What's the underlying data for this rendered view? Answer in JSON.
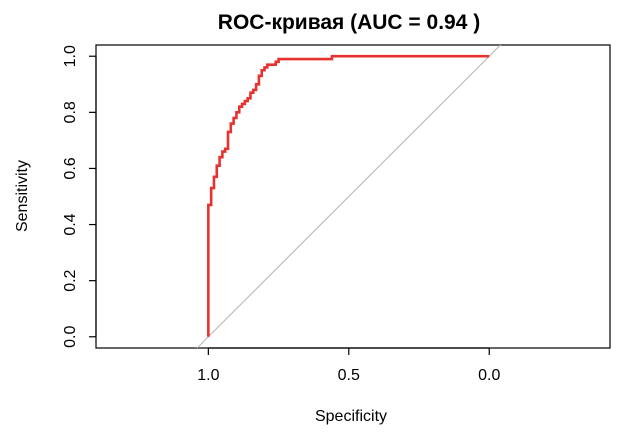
{
  "chart_data": {
    "type": "line",
    "title": "ROC-кривая (AUC = 0.94 )",
    "xlabel": "Specificity",
    "ylabel": "Sensitivity",
    "x_reversed": true,
    "xlim": [
      1.4,
      -0.43
    ],
    "ylim": [
      -0.04,
      1.04
    ],
    "grid": false,
    "legend": "none",
    "x_ticks": [
      {
        "value": 1.0,
        "label": "1.0"
      },
      {
        "value": 0.5,
        "label": "0.5"
      },
      {
        "value": 0.0,
        "label": "0.0"
      }
    ],
    "y_ticks": [
      {
        "value": 0.0,
        "label": "0.0"
      },
      {
        "value": 0.2,
        "label": "0.2"
      },
      {
        "value": 0.4,
        "label": "0.4"
      },
      {
        "value": 0.6,
        "label": "0.6"
      },
      {
        "value": 0.8,
        "label": "0.8"
      },
      {
        "value": 1.0,
        "label": "1.0"
      }
    ],
    "series": [
      {
        "color": "#e8322f",
        "x": [
          1.0,
          1.0,
          1.0,
          0.99,
          0.99,
          0.98,
          0.98,
          0.97,
          0.97,
          0.96,
          0.96,
          0.95,
          0.95,
          0.94,
          0.94,
          0.93,
          0.93,
          0.92,
          0.92,
          0.91,
          0.91,
          0.9,
          0.9,
          0.89,
          0.89,
          0.88,
          0.88,
          0.87,
          0.87,
          0.86,
          0.86,
          0.85,
          0.85,
          0.84,
          0.84,
          0.83,
          0.83,
          0.82,
          0.82,
          0.81,
          0.81,
          0.8,
          0.8,
          0.79,
          0.79,
          0.78,
          0.78,
          0.77,
          0.77,
          0.76,
          0.76,
          0.75,
          0.75,
          0.74,
          0.74,
          0.56,
          0.56,
          0.0
        ],
        "y": [
          0.0,
          0.47,
          0.47,
          0.47,
          0.53,
          0.53,
          0.57,
          0.57,
          0.61,
          0.61,
          0.64,
          0.64,
          0.66,
          0.66,
          0.67,
          0.67,
          0.73,
          0.73,
          0.76,
          0.76,
          0.78,
          0.78,
          0.8,
          0.8,
          0.82,
          0.82,
          0.83,
          0.83,
          0.84,
          0.84,
          0.85,
          0.85,
          0.87,
          0.87,
          0.88,
          0.88,
          0.9,
          0.9,
          0.93,
          0.93,
          0.95,
          0.95,
          0.96,
          0.96,
          0.97,
          0.97,
          0.97,
          0.97,
          0.97,
          0.97,
          0.98,
          0.98,
          0.99,
          0.99,
          0.99,
          0.99,
          1.0,
          1.0
        ]
      }
    ],
    "reference_line": {
      "color": "#bbbbbb",
      "from": [
        1.0,
        0.0
      ],
      "to": [
        0.0,
        1.0
      ]
    }
  }
}
